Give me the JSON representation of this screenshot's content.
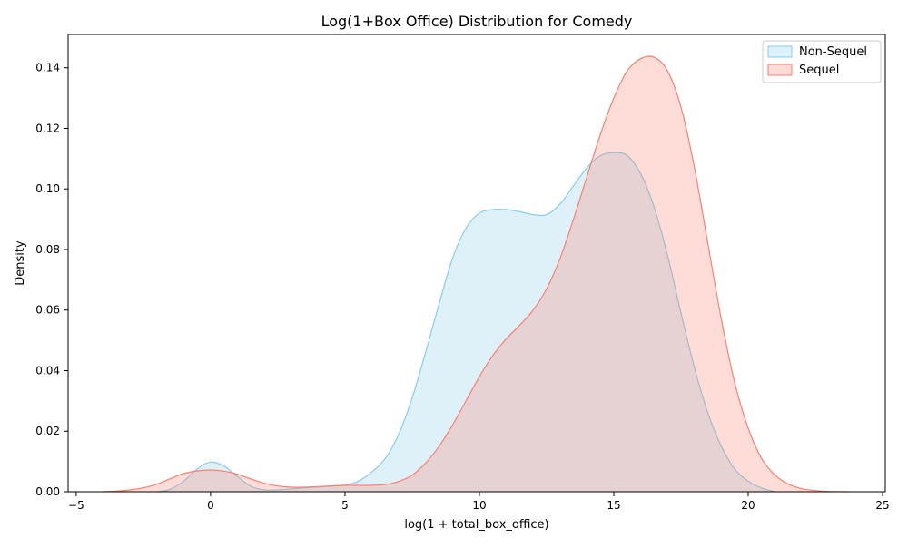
{
  "chart_data": {
    "type": "area",
    "title": "Log(1+Box Office) Distribution for Comedy",
    "xlabel": "log(1 + total_box_office)",
    "ylabel": "Density",
    "xlim": [
      -5.3,
      25.1
    ],
    "ylim": [
      0,
      0.151
    ],
    "xticks": [
      -5,
      0,
      5,
      10,
      15,
      20,
      25
    ],
    "xtick_labels": [
      "−5",
      "0",
      "5",
      "10",
      "15",
      "20",
      "25"
    ],
    "yticks": [
      0,
      0.02,
      0.04,
      0.06,
      0.08,
      0.1,
      0.12,
      0.14
    ],
    "ytick_labels": [
      "0.00",
      "0.02",
      "0.04",
      "0.06",
      "0.08",
      "0.10",
      "0.12",
      "0.14"
    ],
    "grid": false,
    "legend_position": "top-right",
    "series": [
      {
        "name": "Non-Sequel",
        "line_color": "#87ceeb",
        "fill_color": "#ddf1fa",
        "x": [
          -2,
          -1.5,
          -1,
          -0.5,
          0,
          0.5,
          1,
          1.5,
          2,
          2.5,
          3,
          4,
          5,
          5.5,
          6,
          6.5,
          7,
          7.5,
          8,
          8.5,
          9,
          9.5,
          10,
          10.5,
          11,
          11.5,
          12,
          12.5,
          13,
          13.5,
          14,
          14.5,
          15,
          15.5,
          16,
          16.5,
          17,
          17.5,
          18,
          18.5,
          19,
          19.5,
          20,
          20.5,
          21
        ],
        "y": [
          0.0,
          0.0008,
          0.0035,
          0.0075,
          0.0098,
          0.0085,
          0.005,
          0.0018,
          0.0006,
          0.0006,
          0.0009,
          0.0016,
          0.0022,
          0.0035,
          0.0065,
          0.011,
          0.019,
          0.031,
          0.046,
          0.062,
          0.077,
          0.087,
          0.092,
          0.0932,
          0.0932,
          0.0925,
          0.0915,
          0.0915,
          0.095,
          0.101,
          0.107,
          0.111,
          0.112,
          0.111,
          0.105,
          0.094,
          0.078,
          0.059,
          0.041,
          0.026,
          0.015,
          0.0075,
          0.0035,
          0.0012,
          0.0
        ]
      },
      {
        "name": "Sequel",
        "line_color": "#fa8072",
        "fill_color": "#fddcd7",
        "x": [
          -4,
          -3.5,
          -3,
          -2.5,
          -2,
          -1.5,
          -1,
          -0.5,
          0,
          0.5,
          1,
          1.5,
          2,
          2.5,
          3,
          3.5,
          4,
          4.5,
          5,
          5.5,
          6,
          6.5,
          7,
          7.5,
          8,
          8.5,
          9,
          9.5,
          10,
          10.5,
          11,
          11.5,
          12,
          12.5,
          13,
          13.5,
          14,
          14.5,
          15,
          15.5,
          16,
          16.5,
          17,
          17.5,
          18,
          18.5,
          19,
          19.5,
          20,
          20.5,
          21,
          21.5,
          22,
          22.5,
          23,
          23.7
        ],
        "y": [
          0.0,
          0.0002,
          0.0006,
          0.0013,
          0.0025,
          0.0043,
          0.006,
          0.0069,
          0.0072,
          0.0068,
          0.0058,
          0.0042,
          0.0028,
          0.0019,
          0.0015,
          0.0015,
          0.0017,
          0.0019,
          0.0021,
          0.0021,
          0.0021,
          0.0024,
          0.0034,
          0.0055,
          0.0095,
          0.015,
          0.022,
          0.03,
          0.038,
          0.045,
          0.0505,
          0.055,
          0.06,
          0.067,
          0.077,
          0.09,
          0.104,
          0.118,
          0.13,
          0.139,
          0.143,
          0.1435,
          0.139,
          0.127,
          0.107,
          0.082,
          0.057,
          0.036,
          0.021,
          0.011,
          0.0055,
          0.0025,
          0.001,
          0.0004,
          0.0001,
          0.0
        ]
      }
    ]
  }
}
